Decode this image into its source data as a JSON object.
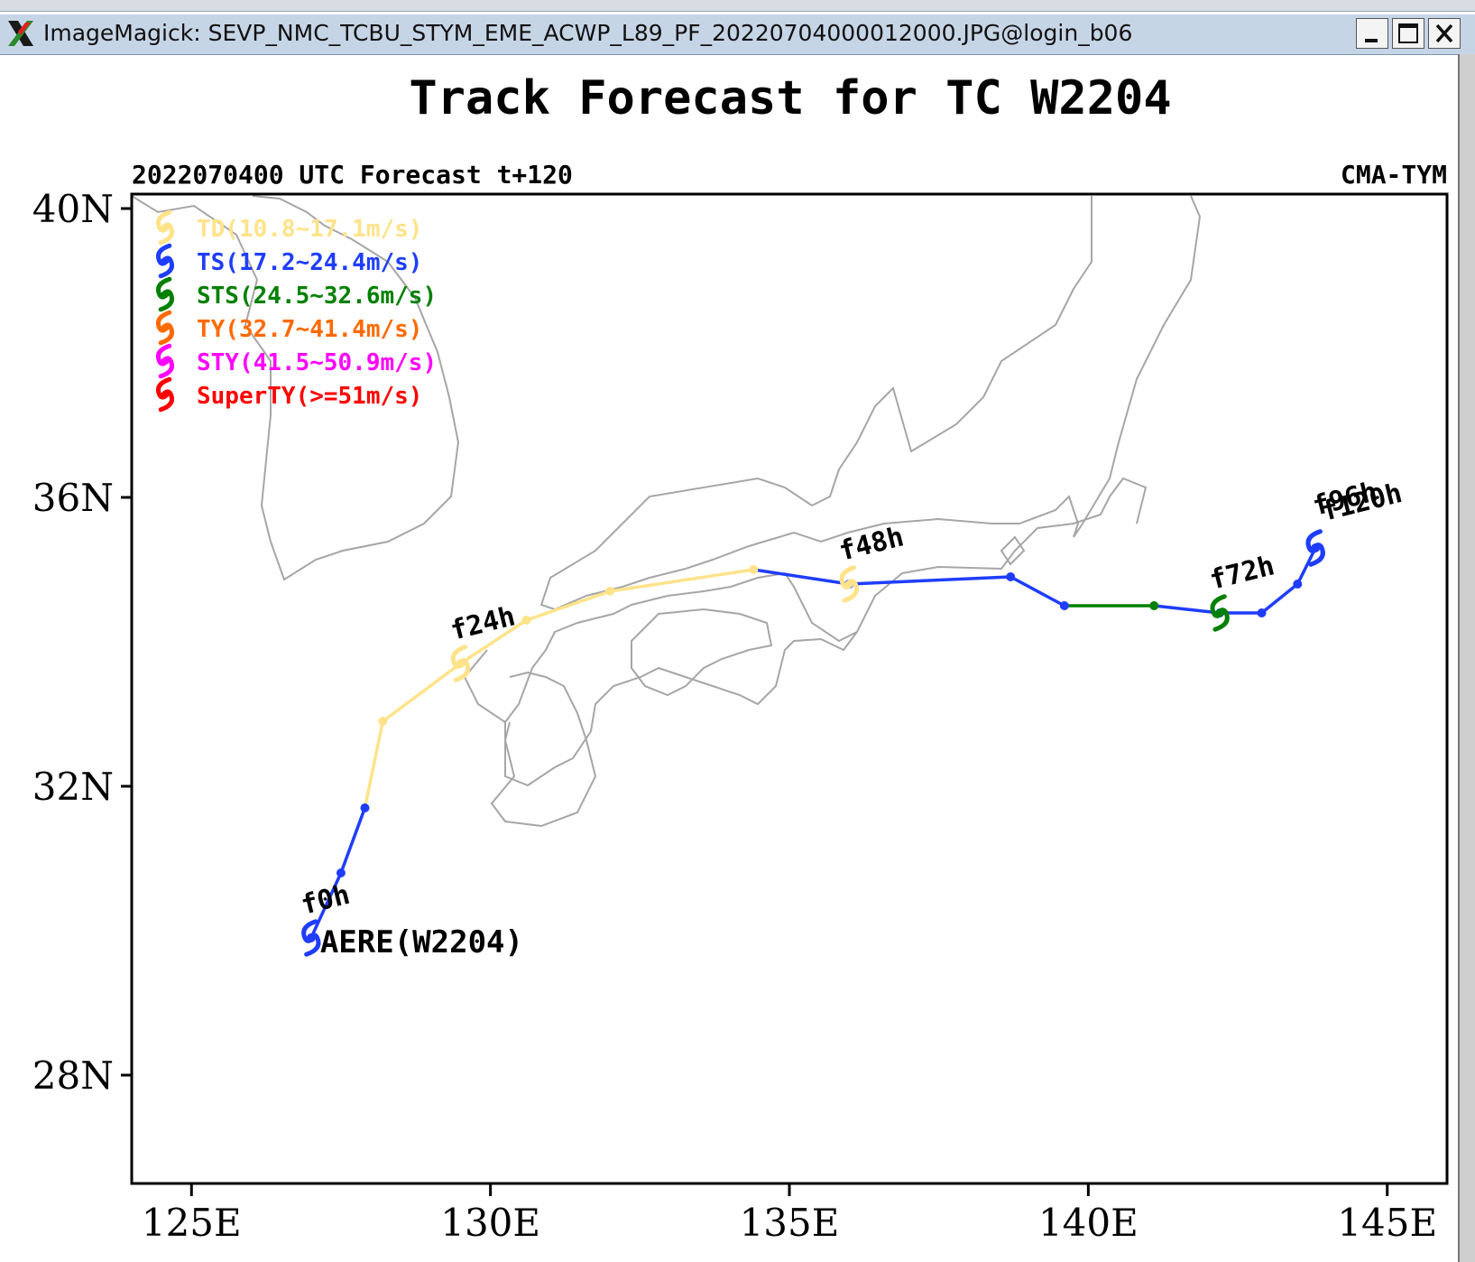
{
  "window": {
    "title": "ImageMagick: SEVP_NMC_TCBU_STYM_EME_ACWP_L89_PF_20220704000012000.JPG@login_b06",
    "buttons": {
      "minimize": "_",
      "maximize": "□",
      "close": "✕"
    }
  },
  "figure": {
    "title": "Track Forecast for TC W2204",
    "subtitle_left": "2022070400 UTC Forecast t+120",
    "subtitle_right": "CMA-TYM",
    "storm_label": "AERE(W2204)"
  },
  "legend": [
    {
      "label": "TD(10.8~17.1m/s)",
      "color": "#ffe38a"
    },
    {
      "label": "TS(17.2~24.4m/s)",
      "color": "#1f3dff"
    },
    {
      "label": "STS(24.5~32.6m/s)",
      "color": "#008000"
    },
    {
      "label": "TY(32.7~41.4m/s)",
      "color": "#ff6a00"
    },
    {
      "label": "STY(41.5~50.9m/s)",
      "color": "#ff00ff"
    },
    {
      "label": "SuperTY(>=51m/s)",
      "color": "#ff0000"
    }
  ],
  "colors": {
    "coast": "#a6a6a6",
    "axes": "#000000"
  },
  "chart_data": {
    "type": "line",
    "title": "Track Forecast for TC W2204",
    "xlabel": "",
    "ylabel": "",
    "xlim": [
      124,
      146
    ],
    "ylim": [
      26.5,
      40.2
    ],
    "xticks": [
      125,
      130,
      135,
      140,
      145
    ],
    "xtick_labels": [
      "125E",
      "130E",
      "135E",
      "140E",
      "145E"
    ],
    "yticks": [
      28,
      32,
      36,
      40
    ],
    "ytick_labels": [
      "28N",
      "32N",
      "36N",
      "40N"
    ],
    "track": [
      {
        "lon": 127.0,
        "lat": 29.9,
        "cat": "TS"
      },
      {
        "lon": 127.5,
        "lat": 30.8,
        "cat": "TS"
      },
      {
        "lon": 127.9,
        "lat": 31.7,
        "cat": "TS"
      },
      {
        "lon": 128.2,
        "lat": 32.9,
        "cat": "TD"
      },
      {
        "lon": 129.5,
        "lat": 33.7,
        "cat": "TD"
      },
      {
        "lon": 130.6,
        "lat": 34.3,
        "cat": "TD"
      },
      {
        "lon": 132.0,
        "lat": 34.7,
        "cat": "TD"
      },
      {
        "lon": 134.4,
        "lat": 35.0,
        "cat": "TD"
      },
      {
        "lon": 136.0,
        "lat": 34.8,
        "cat": "TS"
      },
      {
        "lon": 138.7,
        "lat": 34.9,
        "cat": "TS"
      },
      {
        "lon": 139.6,
        "lat": 34.5,
        "cat": "TS"
      },
      {
        "lon": 141.1,
        "lat": 34.5,
        "cat": "STS"
      },
      {
        "lon": 142.2,
        "lat": 34.4,
        "cat": "TS"
      },
      {
        "lon": 142.9,
        "lat": 34.4,
        "cat": "TS"
      },
      {
        "lon": 143.5,
        "lat": 34.8,
        "cat": "TS"
      },
      {
        "lon": 143.8,
        "lat": 35.3,
        "cat": "TS"
      }
    ],
    "time_labels": [
      {
        "text": "f0h",
        "lon": 127.0,
        "lat": 29.9
      },
      {
        "text": "f24h",
        "lon": 129.5,
        "lat": 33.7
      },
      {
        "text": "f48h",
        "lon": 136.0,
        "lat": 34.8
      },
      {
        "text": "f72h",
        "lon": 142.2,
        "lat": 34.4
      },
      {
        "text": "f96h",
        "lon": 143.8,
        "lat": 35.3
      },
      {
        "text": "f120h",
        "lon": 143.8,
        "lat": 35.3
      }
    ]
  }
}
